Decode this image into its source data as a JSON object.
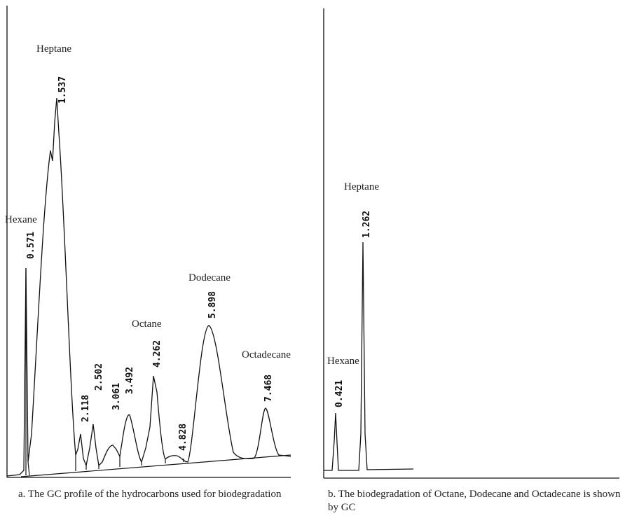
{
  "chart_data": [
    {
      "type": "line",
      "caption": "a. The GC profile of the hydrocarbons used for biodegradation",
      "peaks": [
        {
          "rt": "0.571",
          "compound": "Hexane"
        },
        {
          "rt": "1.537",
          "compound": "Heptane"
        },
        {
          "rt": "2.118",
          "compound": ""
        },
        {
          "rt": "2.502",
          "compound": ""
        },
        {
          "rt": "3.061",
          "compound": ""
        },
        {
          "rt": "3.492",
          "compound": ""
        },
        {
          "rt": "4.262",
          "compound": "Octane"
        },
        {
          "rt": "4.828",
          "compound": ""
        },
        {
          "rt": "5.898",
          "compound": "Dodecane"
        },
        {
          "rt": "7.468",
          "compound": "Octadecane"
        }
      ]
    },
    {
      "type": "line",
      "caption": "b. The biodegradation of Octane, Dodecane and Octadecane is shown by GC",
      "peaks": [
        {
          "rt": "0.421",
          "compound": "Hexane"
        },
        {
          "rt": "1.262",
          "compound": "Heptane"
        }
      ]
    }
  ]
}
